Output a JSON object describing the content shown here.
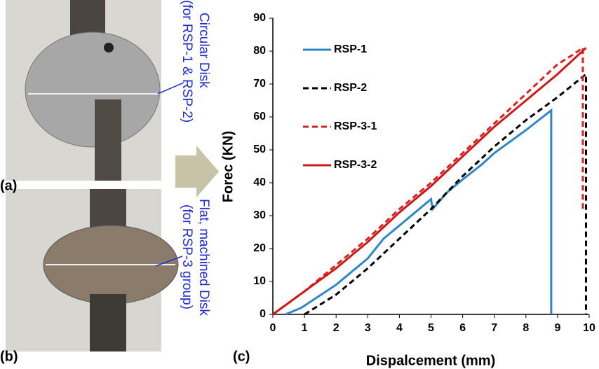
{
  "photos": {
    "a": {
      "label": "(a)",
      "caption": [
        "Circular Disk",
        "(for RSP-1 & RSP-2)"
      ]
    },
    "b": {
      "label": "(b)",
      "caption": [
        "Flat, machined Disk",
        "(for RSP-3 group)"
      ]
    }
  },
  "chart_data": {
    "type": "line",
    "panel_label": "(c)",
    "x_label": "Dispalcement (mm)",
    "y_label": "Forec (KN)",
    "xlim": [
      0,
      10
    ],
    "xticks": [
      0,
      1,
      2,
      3,
      4,
      5,
      6,
      7,
      8,
      9,
      10
    ],
    "ylim": [
      0,
      90
    ],
    "yticks": [
      0,
      10,
      20,
      30,
      40,
      50,
      60,
      70,
      80,
      90
    ],
    "legend": "upper left",
    "series": [
      {
        "name": "RSP-1",
        "color": "#2e86c8",
        "dash": false,
        "x": [
          0.4,
          0.9,
          2,
          3,
          3.5,
          4,
          4.5,
          5,
          5.05,
          5.5,
          6,
          6.6,
          7,
          8,
          8.8,
          8.8
        ],
        "values": [
          0,
          2,
          9,
          17,
          23,
          27,
          31,
          35,
          32,
          37,
          41,
          45.5,
          49,
          56,
          62,
          0
        ]
      },
      {
        "name": "RSP-2",
        "color": "#000000",
        "dash": true,
        "x": [
          1,
          2,
          3,
          4,
          5,
          6,
          7,
          8,
          9,
          9.9,
          9.9
        ],
        "values": [
          0,
          6,
          14,
          23,
          32,
          42,
          51,
          59,
          66,
          73,
          0
        ]
      },
      {
        "name": "RSP-3-1",
        "color": "#e02020",
        "dash": true,
        "x": [
          0,
          1,
          2,
          3,
          4,
          5,
          6,
          7,
          8,
          9,
          9.5,
          9.8,
          9.8
        ],
        "values": [
          0,
          7,
          15,
          23,
          32,
          40,
          49,
          58,
          67,
          76,
          79,
          81,
          32
        ]
      },
      {
        "name": "RSP-3-2",
        "color": "#d01818",
        "dash": false,
        "x": [
          0,
          1,
          2,
          3,
          4,
          5,
          6,
          7,
          8,
          9,
          9.9
        ],
        "values": [
          0,
          7,
          14,
          22,
          31,
          39,
          48,
          57,
          65,
          73,
          81
        ]
      }
    ]
  }
}
